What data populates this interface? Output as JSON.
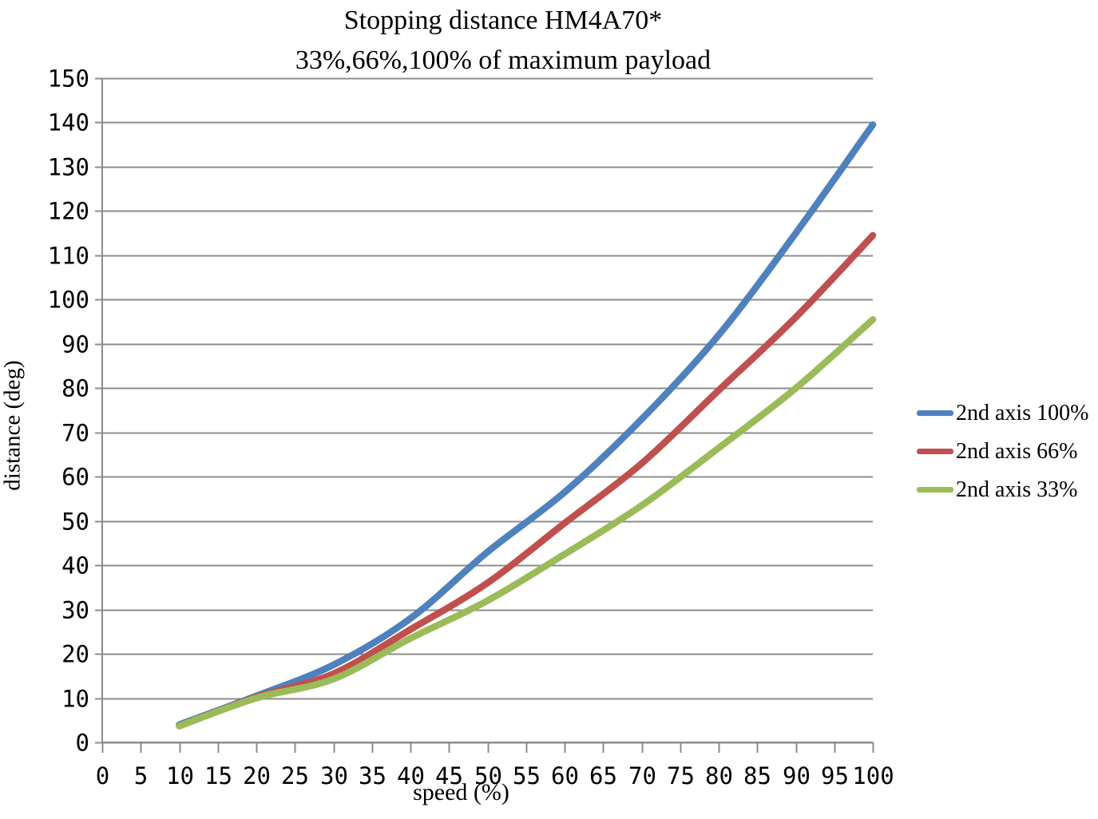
{
  "chart_data": {
    "type": "line",
    "title": "Stopping distance HM4A70*",
    "subtitle": "33%,66%,100% of maximum payload",
    "xlabel": "speed (%)",
    "ylabel": "distance (deg)",
    "xlim": [
      0,
      100
    ],
    "ylim": [
      0,
      150
    ],
    "xtick_step": 5,
    "ytick_step": 10,
    "grid": "horizontal gridlines only",
    "gridline_color": "#8C8C8C",
    "legend_position": "right",
    "x": [
      10,
      20,
      30,
      40,
      50,
      60,
      70,
      80,
      90,
      100
    ],
    "series": [
      {
        "name": "2nd axis 100%",
        "color": "#4F81BD",
        "values": [
          4.0,
          10.5,
          17.5,
          28.0,
          43.0,
          56.5,
          73.0,
          92.0,
          115.0,
          139.5
        ]
      },
      {
        "name": "2nd axis 66%",
        "color": "#C0504D",
        "values": [
          3.7,
          10.2,
          15.5,
          25.5,
          36.0,
          49.5,
          63.0,
          79.5,
          96.0,
          114.5
        ]
      },
      {
        "name": "2nd axis 33%",
        "color": "#9BBB59",
        "values": [
          3.7,
          10.0,
          14.3,
          23.5,
          32.0,
          42.5,
          53.5,
          66.5,
          80.0,
          95.5
        ]
      }
    ]
  }
}
